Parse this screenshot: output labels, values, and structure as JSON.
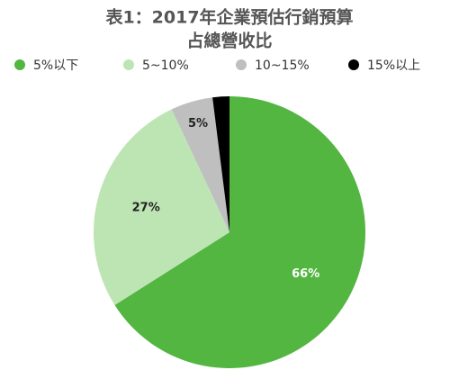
{
  "chart_data": {
    "type": "pie",
    "title": "表1：2017年企業預估行銷預算",
    "subtitle": "占總營收比",
    "categories": [
      "5%以下",
      "5~10%",
      "10~15%",
      "15%以上"
    ],
    "values": [
      66,
      27,
      5,
      2
    ],
    "value_labels": [
      "66%",
      "27%",
      "5%",
      null
    ],
    "colors": [
      "#52b641",
      "#bde5b4",
      "#bfbfbf",
      "#000000"
    ],
    "legend": "top"
  }
}
